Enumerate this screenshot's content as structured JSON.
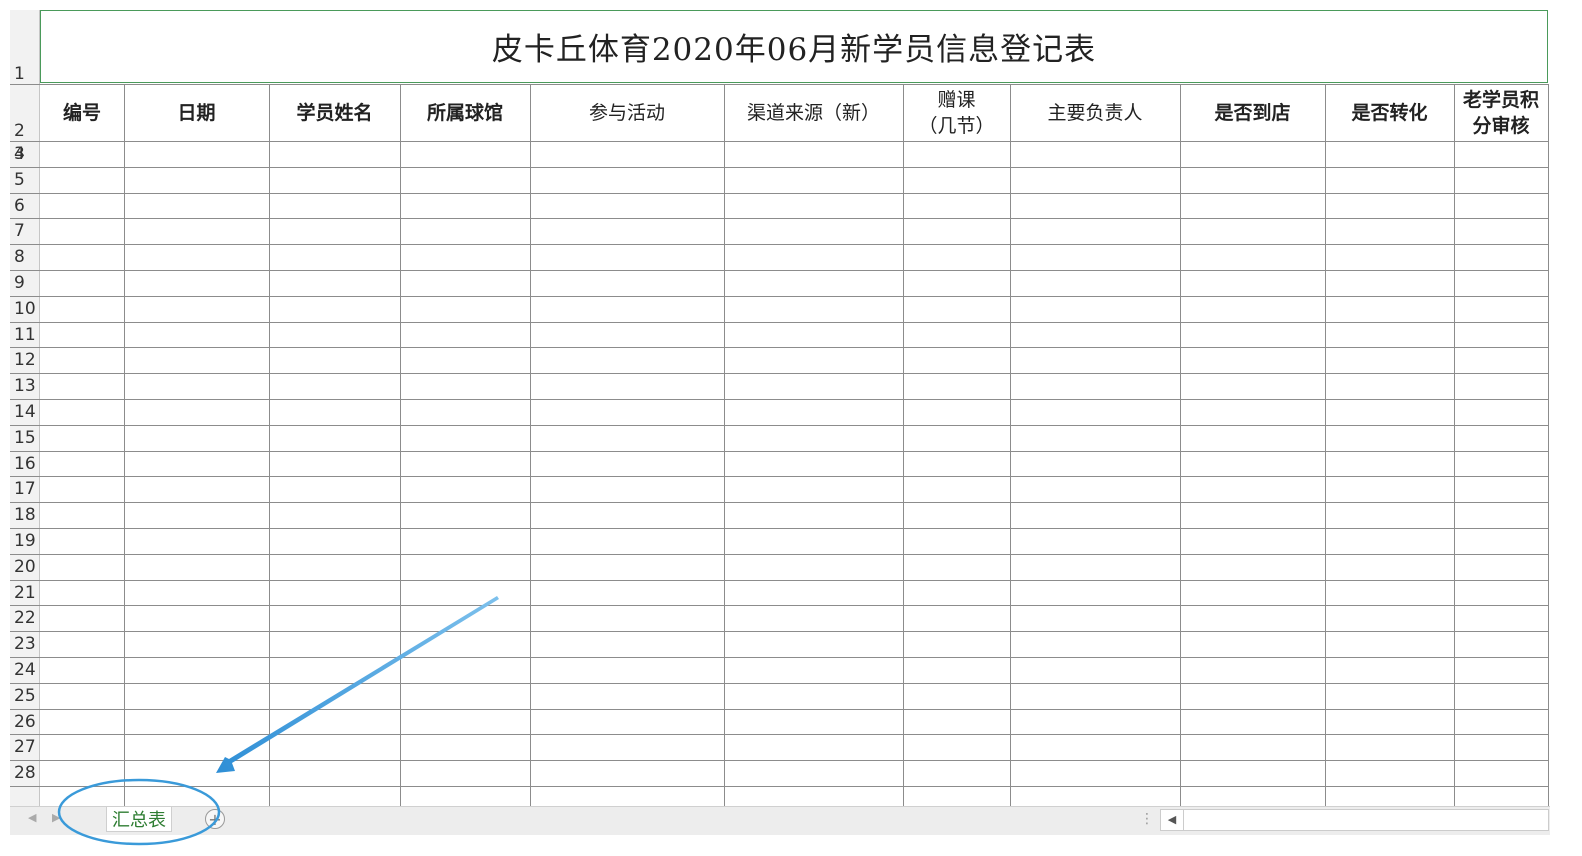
{
  "sheet": {
    "title": "皮卡丘体育2020年06月新学员信息登记表",
    "row_numbers": [
      "1",
      "2",
      "3",
      "4",
      "5",
      "6",
      "7",
      "8",
      "9",
      "10",
      "11",
      "12",
      "13",
      "14",
      "15",
      "16",
      "17",
      "18",
      "19",
      "20",
      "21",
      "22",
      "23",
      "24",
      "25",
      "26",
      "27",
      "28"
    ],
    "headers": [
      {
        "text": "编号"
      },
      {
        "text": "日期"
      },
      {
        "text": "学员姓名"
      },
      {
        "text": "所属球馆"
      },
      {
        "text": "参与活动"
      },
      {
        "text": "渠道来源（新）"
      },
      {
        "text": "赠课\n（几节）"
      },
      {
        "text": "主要负责人"
      },
      {
        "text": "是否到店"
      },
      {
        "text": "是否转化"
      },
      {
        "text": "老学员积\n分审核"
      }
    ]
  },
  "tabs": {
    "active_tab": "汇总表",
    "add_icon": "+"
  },
  "colors": {
    "grid_line": "#8c8c8c",
    "title_border": "#4a9a5a",
    "tab_text": "#2e7d32",
    "annotation": "#3a9ad9"
  },
  "icons": [
    "add-sheet-icon",
    "scroll-left-icon",
    "annotation-arrow-icon",
    "annotation-ellipse-icon"
  ]
}
